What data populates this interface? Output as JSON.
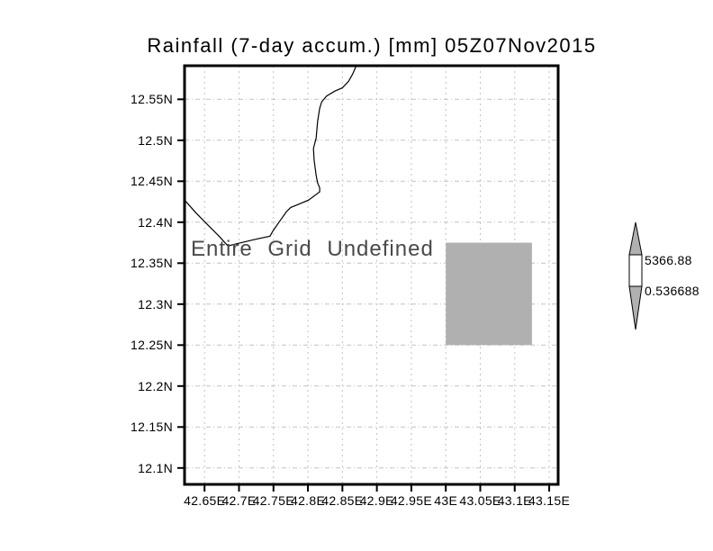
{
  "title": "Rainfall (7-day accum.) [mm] 05Z07Nov2015",
  "annotation": "Entire Grid Undefined",
  "colorbar": {
    "max_label": "5366.88",
    "min_label": "0.536688"
  },
  "colors": {
    "background": "#ffffff",
    "frame": "#000000",
    "coastline": "#000000",
    "gridline": "#c2c2c2",
    "tick": "#000000",
    "undefined_fill": "#b0b0b0",
    "colorbar_arrow_fill": "#b0b0b0",
    "colorbar_band_fill": "#ffffff",
    "annotation_text": "#4a4a4a",
    "label_text": "#000000"
  },
  "chart_data": {
    "type": "heatmap",
    "title": "Rainfall (7-day accum.) [mm] 05Z07Nov2015",
    "xlabel": "",
    "ylabel": "",
    "status_annotation": "Entire Grid Undefined",
    "grid": true,
    "legend_position": "right-colorbar",
    "colorbar_range": [
      0.536688,
      5366.88
    ],
    "xlim": [
      42.621,
      43.163
    ],
    "ylim": [
      12.08,
      12.591
    ],
    "x_ticks": {
      "values": [
        42.65,
        42.7,
        42.75,
        42.8,
        42.85,
        42.9,
        42.95,
        43.0,
        43.05,
        43.1,
        43.15
      ],
      "labels": [
        "42.65E",
        "42.7E",
        "42.75E",
        "42.8E",
        "42.85E",
        "42.9E",
        "42.95E",
        "43E",
        "43.05E",
        "43.1E",
        "43.15E"
      ]
    },
    "y_ticks": {
      "values": [
        12.55,
        12.5,
        12.45,
        12.4,
        12.35,
        12.3,
        12.25,
        12.2,
        12.15,
        12.1
      ],
      "labels": [
        "12.55N",
        "12.5N",
        "12.45N",
        "12.4N",
        "12.35N",
        "12.3N",
        "12.25N",
        "12.2N",
        "12.15N",
        "12.1N"
      ]
    },
    "undefined_region": {
      "lon": [
        43.0,
        43.125
      ],
      "lat": [
        12.25,
        12.375
      ]
    },
    "coastline": [
      [
        42.87,
        12.591
      ],
      [
        42.865,
        12.581
      ],
      [
        42.859,
        12.572
      ],
      [
        42.85,
        12.564
      ],
      [
        42.839,
        12.56
      ],
      [
        42.827,
        12.554
      ],
      [
        42.82,
        12.547
      ],
      [
        42.817,
        12.539
      ],
      [
        42.814,
        12.523
      ],
      [
        42.812,
        12.503
      ],
      [
        42.808,
        12.49
      ],
      [
        42.809,
        12.476
      ],
      [
        42.812,
        12.457
      ],
      [
        42.814,
        12.448
      ],
      [
        42.817,
        12.442
      ],
      [
        42.817,
        12.437
      ],
      [
        42.801,
        12.427
      ],
      [
        42.784,
        12.421
      ],
      [
        42.775,
        12.418
      ],
      [
        42.769,
        12.413
      ],
      [
        42.758,
        12.4
      ],
      [
        42.749,
        12.389
      ],
      [
        42.745,
        12.383
      ],
      [
        42.723,
        12.379
      ],
      [
        42.693,
        12.373
      ],
      [
        42.684,
        12.371
      ],
      [
        42.671,
        12.383
      ],
      [
        42.658,
        12.394
      ],
      [
        42.638,
        12.411
      ],
      [
        42.621,
        12.427
      ]
    ]
  }
}
